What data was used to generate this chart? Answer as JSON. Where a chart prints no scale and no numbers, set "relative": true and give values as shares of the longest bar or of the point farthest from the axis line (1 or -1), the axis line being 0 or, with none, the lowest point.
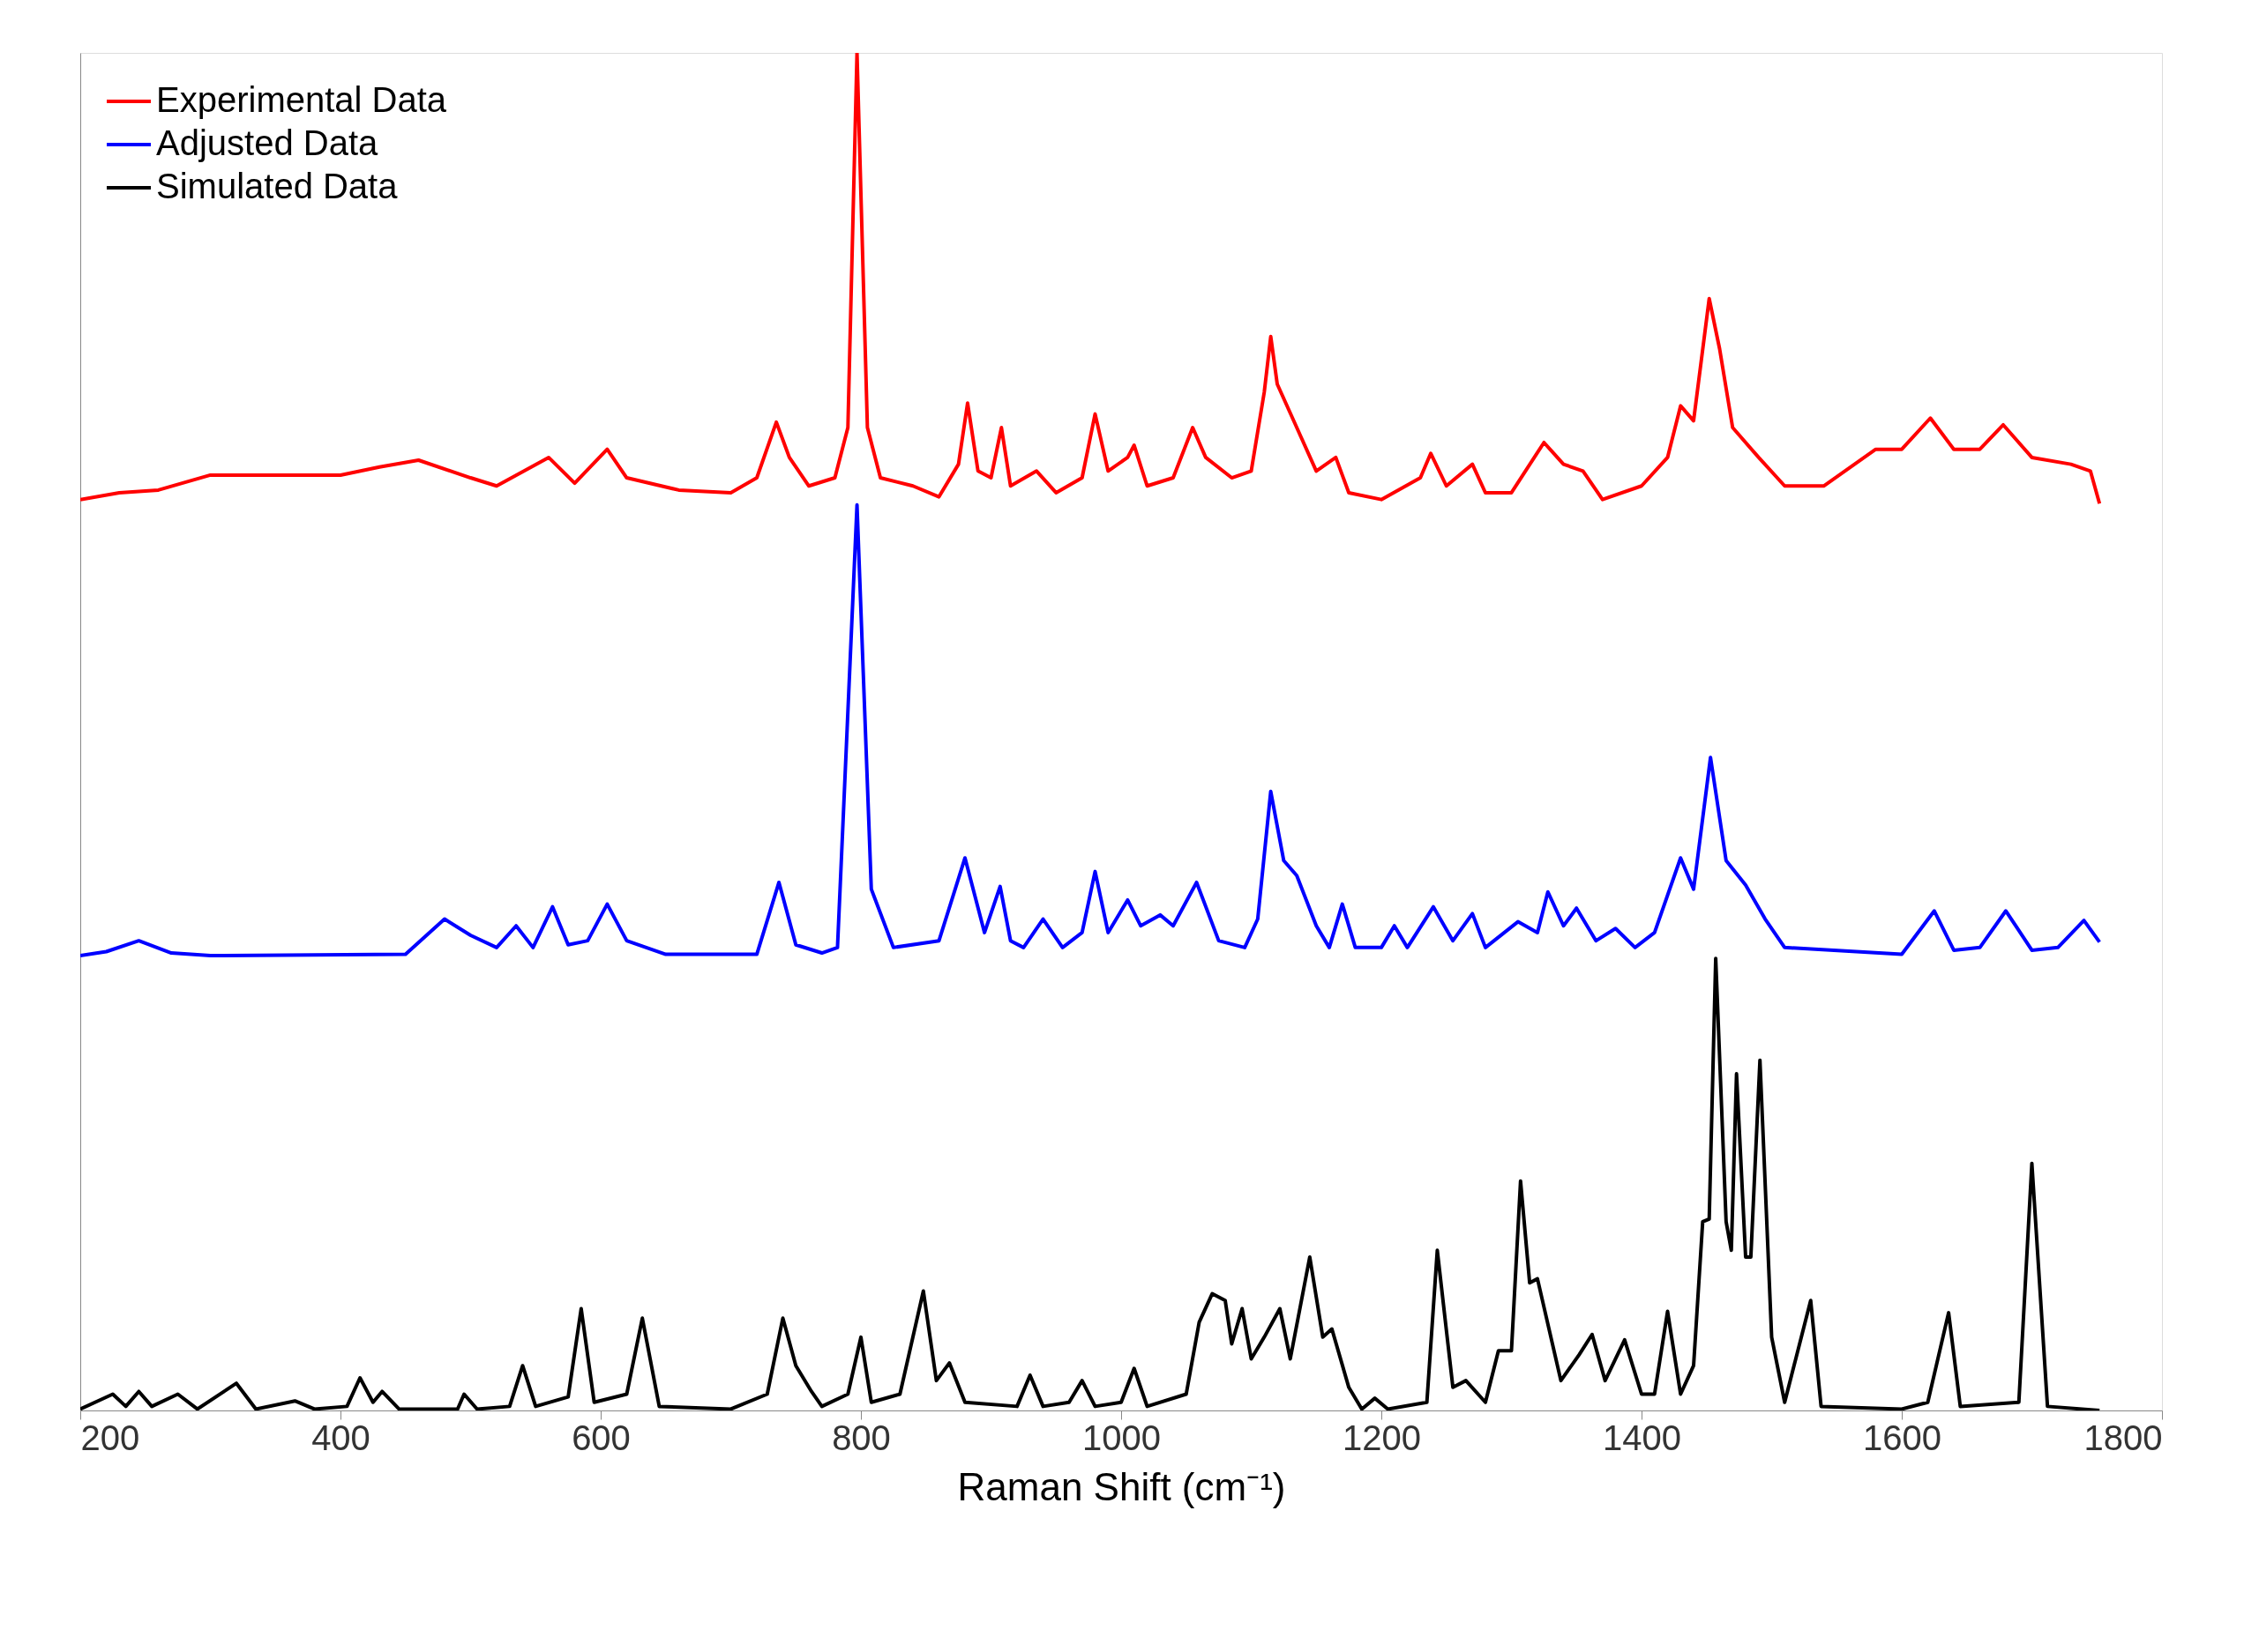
{
  "chart_data": {
    "type": "line",
    "relative": true,
    "xlabel": "Raman Shift (cm⁻¹)",
    "xlim": [
      200,
      1800
    ],
    "xticks": [
      200,
      400,
      600,
      800,
      1000,
      1200,
      1400,
      1600,
      1800
    ],
    "grid": false,
    "legend": "top left",
    "marker": "none",
    "line_style": "solid",
    "series": [
      {
        "name": "Experimental Data",
        "color": "#ff0000",
        "x": [
          200,
          230,
          260,
          300,
          350,
          400,
          430,
          460,
          500,
          520,
          560,
          580,
          605,
          620,
          660,
          700,
          720,
          735,
          745,
          760,
          780,
          790,
          797,
          805,
          815,
          840,
          860,
          875,
          882,
          890,
          900,
          908,
          915,
          935,
          950,
          970,
          980,
          990,
          1005,
          1010,
          1020,
          1040,
          1055,
          1065,
          1085,
          1100,
          1110,
          1115,
          1120,
          1135,
          1150,
          1165,
          1175,
          1200,
          1230,
          1238,
          1250,
          1270,
          1280,
          1300,
          1325,
          1340,
          1355,
          1370,
          1400,
          1420,
          1430,
          1440,
          1452,
          1460,
          1470,
          1490,
          1510,
          1540,
          1580,
          1600,
          1622,
          1640,
          1660,
          1678,
          1700,
          1730,
          1745,
          1752
        ],
        "values": [
          0.671,
          0.676,
          0.678,
          0.689,
          0.689,
          0.689,
          0.695,
          0.7,
          0.687,
          0.681,
          0.702,
          0.683,
          0.708,
          0.687,
          0.678,
          0.676,
          0.687,
          0.728,
          0.702,
          0.681,
          0.687,
          0.724,
          1.0,
          0.724,
          0.687,
          0.681,
          0.673,
          0.697,
          0.742,
          0.692,
          0.687,
          0.724,
          0.681,
          0.692,
          0.676,
          0.687,
          0.734,
          0.692,
          0.702,
          0.711,
          0.681,
          0.687,
          0.724,
          0.702,
          0.687,
          0.692,
          0.75,
          0.791,
          0.756,
          0.724,
          0.692,
          0.702,
          0.676,
          0.671,
          0.687,
          0.705,
          0.681,
          0.697,
          0.676,
          0.676,
          0.713,
          0.697,
          0.692,
          0.671,
          0.681,
          0.702,
          0.74,
          0.729,
          0.819,
          0.782,
          0.724,
          0.702,
          0.681,
          0.681,
          0.708,
          0.708,
          0.731,
          0.708,
          0.708,
          0.726,
          0.702,
          0.697,
          0.692,
          0.668
        ]
      },
      {
        "name": "Adjusted Data",
        "color": "#0000ff",
        "x": [
          200,
          220,
          245,
          270,
          300,
          450,
          480,
          500,
          520,
          535,
          548,
          563,
          575,
          590,
          605,
          620,
          650,
          720,
          737,
          750,
          770,
          782,
          797,
          808,
          825,
          860,
          880,
          895,
          907,
          915,
          925,
          940,
          955,
          970,
          980,
          990,
          1005,
          1015,
          1030,
          1040,
          1058,
          1075,
          1095,
          1105,
          1115,
          1125,
          1135,
          1150,
          1160,
          1170,
          1180,
          1200,
          1210,
          1220,
          1240,
          1255,
          1270,
          1280,
          1305,
          1320,
          1328,
          1340,
          1350,
          1365,
          1380,
          1395,
          1410,
          1430,
          1440,
          1453,
          1465,
          1480,
          1495,
          1510,
          1600,
          1625,
          1640,
          1660,
          1680,
          1700,
          1720,
          1740,
          1752
        ],
        "values": [
          0.335,
          0.338,
          0.346,
          0.337,
          0.335,
          0.336,
          0.362,
          0.35,
          0.341,
          0.357,
          0.341,
          0.371,
          0.343,
          0.346,
          0.373,
          0.346,
          0.336,
          0.336,
          0.389,
          0.343,
          0.337,
          0.341,
          0.667,
          0.384,
          0.341,
          0.346,
          0.407,
          0.352,
          0.386,
          0.346,
          0.341,
          0.362,
          0.341,
          0.352,
          0.397,
          0.352,
          0.376,
          0.357,
          0.365,
          0.357,
          0.389,
          0.346,
          0.341,
          0.362,
          0.456,
          0.405,
          0.394,
          0.357,
          0.341,
          0.373,
          0.341,
          0.341,
          0.357,
          0.341,
          0.371,
          0.346,
          0.366,
          0.341,
          0.36,
          0.352,
          0.382,
          0.357,
          0.37,
          0.346,
          0.355,
          0.341,
          0.352,
          0.407,
          0.384,
          0.481,
          0.405,
          0.387,
          0.362,
          0.341,
          0.336,
          0.368,
          0.339,
          0.341,
          0.368,
          0.339,
          0.341,
          0.361,
          0.345
        ]
      },
      {
        "name": "Simulated Data",
        "color": "#000000",
        "x": [
          200,
          225,
          235,
          245,
          255,
          275,
          290,
          320,
          335,
          365,
          380,
          405,
          415,
          425,
          432,
          445,
          490,
          495,
          505,
          530,
          540,
          550,
          575,
          585,
          595,
          620,
          632,
          645,
          700,
          728,
          740,
          750,
          762,
          770,
          790,
          800,
          808,
          830,
          848,
          858,
          868,
          880,
          920,
          930,
          940,
          960,
          970,
          980,
          1000,
          1010,
          1020,
          1050,
          1060,
          1070,
          1080,
          1085,
          1093,
          1100,
          1110,
          1122,
          1130,
          1145,
          1155,
          1162,
          1175,
          1185,
          1195,
          1205,
          1235,
          1243,
          1255,
          1265,
          1280,
          1290,
          1300,
          1307,
          1314,
          1320,
          1338,
          1352,
          1362,
          1372,
          1387,
          1400,
          1410,
          1420,
          1430,
          1440,
          1447,
          1452,
          1457,
          1465,
          1469,
          1473,
          1480,
          1484,
          1491,
          1500,
          1510,
          1530,
          1538,
          1600,
          1620,
          1636,
          1645,
          1690,
          1700,
          1712,
          1752
        ],
        "values": [
          0.001,
          0.012,
          0.003,
          0.014,
          0.003,
          0.012,
          0.001,
          0.02,
          0.001,
          0.007,
          0.001,
          0.003,
          0.024,
          0.006,
          0.014,
          0.001,
          0.001,
          0.012,
          0.001,
          0.003,
          0.033,
          0.003,
          0.01,
          0.075,
          0.006,
          0.012,
          0.068,
          0.003,
          0.001,
          0.012,
          0.068,
          0.033,
          0.014,
          0.003,
          0.012,
          0.054,
          0.006,
          0.012,
          0.088,
          0.022,
          0.035,
          0.006,
          0.003,
          0.026,
          0.003,
          0.006,
          0.022,
          0.003,
          0.006,
          0.031,
          0.003,
          0.012,
          0.065,
          0.086,
          0.081,
          0.049,
          0.075,
          0.038,
          0.054,
          0.075,
          0.038,
          0.113,
          0.054,
          0.06,
          0.017,
          0.001,
          0.009,
          0.001,
          0.006,
          0.118,
          0.017,
          0.022,
          0.006,
          0.044,
          0.044,
          0.169,
          0.094,
          0.097,
          0.022,
          0.041,
          0.056,
          0.022,
          0.052,
          0.012,
          0.012,
          0.073,
          0.012,
          0.033,
          0.139,
          0.141,
          0.333,
          0.139,
          0.118,
          0.248,
          0.113,
          0.113,
          0.258,
          0.054,
          0.006,
          0.081,
          0.003,
          0.001,
          0.006,
          0.072,
          0.003,
          0.006,
          0.182,
          0.003,
          0.0
        ]
      }
    ]
  }
}
